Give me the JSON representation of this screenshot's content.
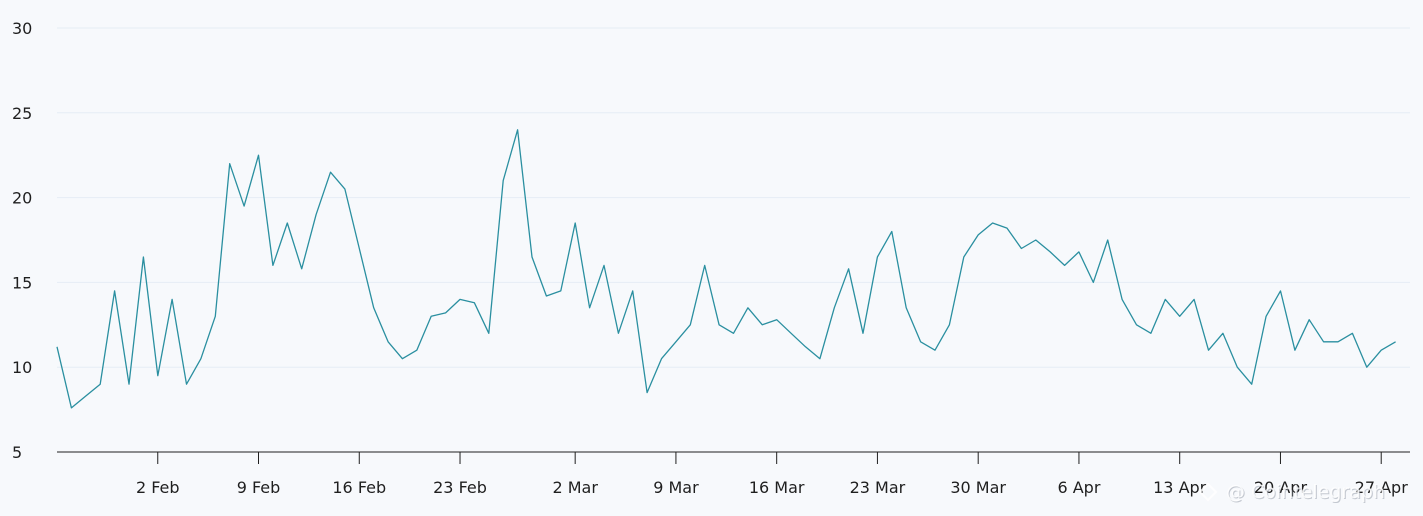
{
  "chart_data": {
    "type": "line",
    "title": "",
    "xlabel": "",
    "ylabel": "",
    "ylim": [
      5,
      30
    ],
    "y_ticks": [
      "5",
      "10",
      "15",
      "20",
      "25",
      "30"
    ],
    "x_ticks": [
      "2 Feb",
      "9 Feb",
      "16 Feb",
      "23 Feb",
      "2 Mar",
      "9 Mar",
      "16 Mar",
      "23 Mar",
      "30 Mar",
      "6 Apr",
      "13 Apr",
      "20 Apr",
      "27 Apr"
    ],
    "x_range": [
      "2020-01-26",
      "2020-04-29"
    ],
    "grid": true,
    "legend": false,
    "line_color": "#2a8fa0",
    "series": [
      {
        "x": [
          "2020-01-26",
          "2020-01-27",
          "2020-01-28",
          "2020-01-29",
          "2020-01-30",
          "2020-01-31",
          "2020-02-01",
          "2020-02-02",
          "2020-02-03",
          "2020-02-04",
          "2020-02-05",
          "2020-02-06",
          "2020-02-07",
          "2020-02-08",
          "2020-02-09",
          "2020-02-10",
          "2020-02-11",
          "2020-02-12",
          "2020-02-13",
          "2020-02-14",
          "2020-02-15",
          "2020-02-16",
          "2020-02-17",
          "2020-02-18",
          "2020-02-19",
          "2020-02-20",
          "2020-02-21",
          "2020-02-22",
          "2020-02-23",
          "2020-02-24",
          "2020-02-25",
          "2020-02-26",
          "2020-02-27",
          "2020-02-28",
          "2020-02-29",
          "2020-03-01",
          "2020-03-02",
          "2020-03-03",
          "2020-03-04",
          "2020-03-05",
          "2020-03-06",
          "2020-03-07",
          "2020-03-08",
          "2020-03-09",
          "2020-03-10",
          "2020-03-11",
          "2020-03-12",
          "2020-03-13",
          "2020-03-14",
          "2020-03-15",
          "2020-03-16",
          "2020-03-17",
          "2020-03-18",
          "2020-03-19",
          "2020-03-20",
          "2020-03-21",
          "2020-03-22",
          "2020-03-23",
          "2020-03-24",
          "2020-03-25",
          "2020-03-26",
          "2020-03-27",
          "2020-03-28",
          "2020-03-29",
          "2020-03-30",
          "2020-03-31",
          "2020-04-01",
          "2020-04-02",
          "2020-04-03",
          "2020-04-04",
          "2020-04-05",
          "2020-04-06",
          "2020-04-07",
          "2020-04-08",
          "2020-04-09",
          "2020-04-10",
          "2020-04-11",
          "2020-04-12",
          "2020-04-13",
          "2020-04-14",
          "2020-04-15",
          "2020-04-16",
          "2020-04-17",
          "2020-04-18",
          "2020-04-19",
          "2020-04-20",
          "2020-04-21",
          "2020-04-22",
          "2020-04-23",
          "2020-04-24",
          "2020-04-25",
          "2020-04-26",
          "2020-04-27",
          "2020-04-28"
        ],
        "values": [
          11.2,
          7.6,
          8.3,
          9.0,
          14.5,
          9.0,
          16.5,
          9.5,
          14.0,
          9.0,
          10.5,
          13.0,
          22.0,
          19.5,
          22.5,
          16.0,
          18.5,
          15.8,
          19.0,
          21.5,
          20.5,
          17.0,
          13.5,
          11.5,
          10.5,
          11.0,
          13.0,
          13.2,
          14.0,
          13.8,
          12.0,
          21.0,
          24.0,
          16.5,
          14.2,
          14.5,
          18.5,
          13.5,
          16.0,
          12.0,
          14.5,
          8.5,
          10.5,
          11.5,
          12.5,
          16.0,
          12.5,
          12.0,
          13.5,
          12.5,
          12.8,
          12.0,
          11.2,
          10.5,
          13.5,
          15.8,
          12.0,
          16.5,
          18.0,
          13.5,
          11.5,
          11.0,
          12.5,
          16.5,
          17.8,
          18.5,
          18.2,
          17.0,
          17.5,
          16.8,
          16.0,
          16.8,
          15.0,
          17.5,
          14.0,
          12.5,
          12.0,
          14.0,
          13.0,
          14.0,
          11.0,
          12.0,
          10.0,
          9.0,
          13.0,
          14.5,
          11.0,
          12.8,
          11.5,
          11.5,
          12.0,
          10.0,
          11.0,
          11.5
        ]
      }
    ]
  },
  "watermark": {
    "icon": "cointelegraph-logo-icon",
    "text": "@ Cointelegraph"
  }
}
